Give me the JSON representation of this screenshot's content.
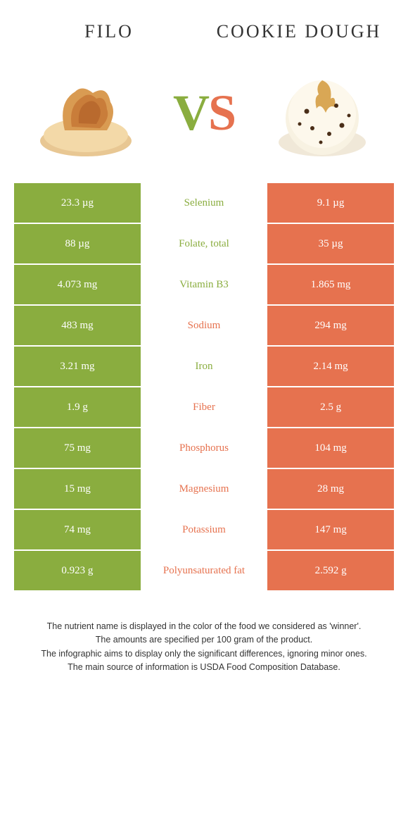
{
  "colors": {
    "left": "#8aad3f",
    "right": "#e6724f",
    "left_cell_text": "#ffffff",
    "right_cell_text": "#ffffff",
    "mid_bg": "#ffffff"
  },
  "header": {
    "left_title": "Filo",
    "right_title": "Cookie dough"
  },
  "vs": {
    "v": "V",
    "s": "S"
  },
  "rows": [
    {
      "left": "23.3 µg",
      "label": "Selenium",
      "right": "9.1 µg",
      "winner": "left"
    },
    {
      "left": "88 µg",
      "label": "Folate, total",
      "right": "35 µg",
      "winner": "left"
    },
    {
      "left": "4.073 mg",
      "label": "Vitamin B3",
      "right": "1.865 mg",
      "winner": "left"
    },
    {
      "left": "483 mg",
      "label": "Sodium",
      "right": "294 mg",
      "winner": "right"
    },
    {
      "left": "3.21 mg",
      "label": "Iron",
      "right": "2.14 mg",
      "winner": "left"
    },
    {
      "left": "1.9 g",
      "label": "Fiber",
      "right": "2.5 g",
      "winner": "right"
    },
    {
      "left": "75 mg",
      "label": "Phosphorus",
      "right": "104 mg",
      "winner": "right"
    },
    {
      "left": "15 mg",
      "label": "Magnesium",
      "right": "28 mg",
      "winner": "right"
    },
    {
      "left": "74 mg",
      "label": "Potassium",
      "right": "147 mg",
      "winner": "right"
    },
    {
      "left": "0.923 g",
      "label": "Polyunsaturated fat",
      "right": "2.592 g",
      "winner": "right"
    }
  ],
  "footer": {
    "line1": "The nutrient name is displayed in the color of the food we considered as 'winner'.",
    "line2": "The amounts are specified per 100 gram of the product.",
    "line3": "The infographic aims to display only the significant differences, ignoring minor ones.",
    "line4": "The main source of information is USDA Food Composition Database."
  },
  "illustrations": {
    "left_alt": "filo pastry",
    "right_alt": "cookie dough ice cream"
  }
}
